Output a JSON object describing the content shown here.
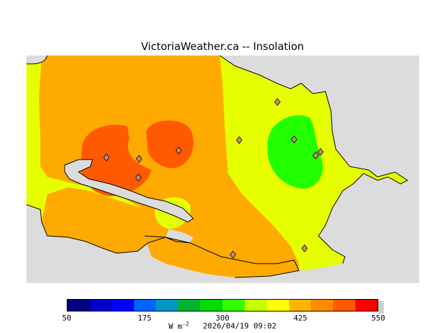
{
  "title": "VictoriaWeather.ca -- Insolation",
  "legend": {
    "ticks": [
      "50",
      "175",
      "300",
      "425",
      "550"
    ],
    "colors": [
      "#000080",
      "#0000c8",
      "#0000ff",
      "#0064ff",
      "#0096c8",
      "#00b432",
      "#00dc00",
      "#32ff00",
      "#c8ff00",
      "#ffff00",
      "#ffb400",
      "#ff8c00",
      "#ff5a00",
      "#ff0000"
    ],
    "unit_prefix": "W m",
    "unit_exponent": "-2",
    "timestamp": "2026/04/19 09:02"
  },
  "map_colors": {
    "land_low": "#e6ff00",
    "land_mid": "#ffaa00",
    "land_high": "#ff5a00",
    "land_green": "#22ff00",
    "water": "#dcdcdc"
  }
}
